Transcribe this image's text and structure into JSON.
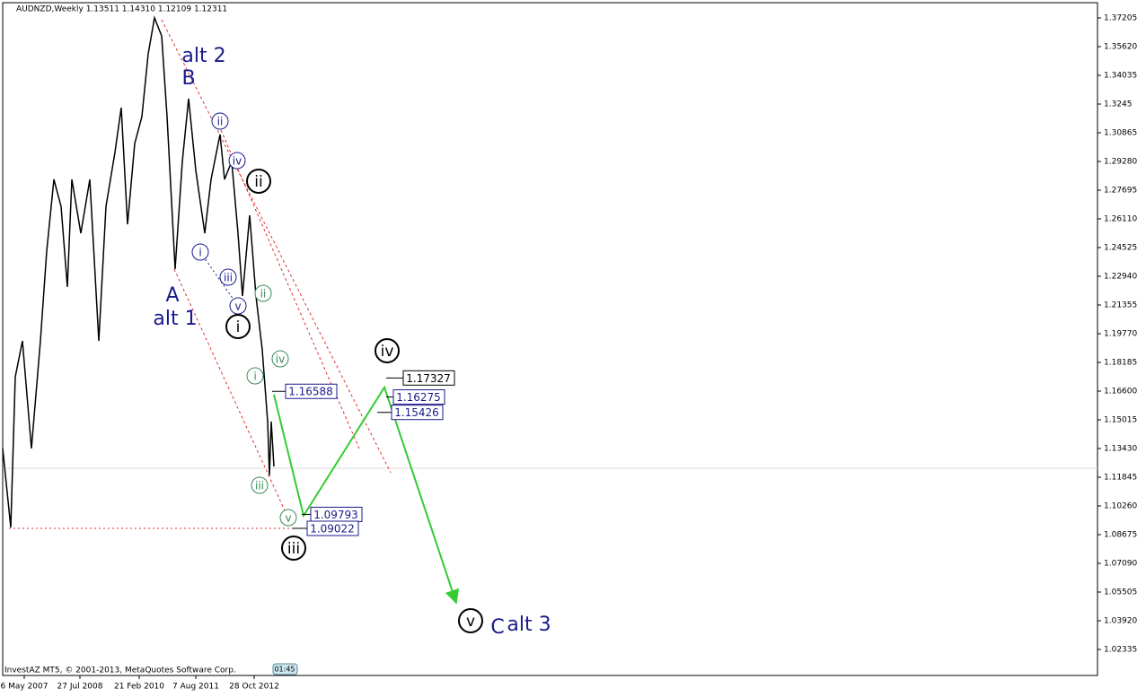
{
  "chart_data": {
    "type": "line",
    "title": "AUDNZD,Weekly  1.13511 1.14310 1.12109 1.12311",
    "footer": "InvestAZ MT5, © 2001-2013, MetaQuotes Software Corp.",
    "clock": "01:45",
    "xlim": [
      0,
      1219
    ],
    "ylim": [
      1.00899,
      1.38047
    ],
    "xticks": [
      {
        "value": 24,
        "label": "6 May 2007"
      },
      {
        "value": 86,
        "label": "27 Jul 2008"
      },
      {
        "value": 152,
        "label": "21 Feb 2010"
      },
      {
        "value": 215,
        "label": "7 Aug 2011"
      },
      {
        "value": 280,
        "label": "28 Oct 2012"
      }
    ],
    "yticks": [
      1.37205,
      {
        "value": 1.3562,
        "label": "1.35620"
      },
      1.34035,
      1.3245,
      1.30865,
      {
        "value": 1.2928,
        "label": "1.29280"
      },
      1.27695,
      {
        "value": 1.2611,
        "label": "1.26110"
      },
      1.24525,
      {
        "value": 1.2294,
        "label": "1.22940"
      },
      1.21355,
      {
        "value": 1.1977,
        "label": "1.19770"
      },
      1.18185,
      {
        "value": 1.166,
        "label": "1.16600"
      },
      1.15015,
      {
        "value": 1.1343,
        "label": "1.13430"
      },
      1.11845,
      {
        "value": 1.1026,
        "label": "1.10260"
      },
      1.08675,
      {
        "value": 1.0709,
        "label": "1.07090"
      },
      1.05505,
      {
        "value": 1.0392,
        "label": "1.03920"
      },
      1.02335
    ],
    "series": [
      {
        "name": "AUDNZD",
        "color": "#000000",
        "x": [
          0,
          9,
          14,
          22,
          32,
          42,
          49,
          57,
          65,
          72,
          77,
          87,
          97,
          107,
          115,
          125,
          132,
          139,
          147,
          155,
          162,
          169,
          177,
          183,
          192,
          200,
          207,
          215,
          225,
          232,
          242,
          247,
          255,
          262,
          267,
          275,
          282,
          289,
          295,
          297,
          299,
          302
        ],
        "values": [
          1.1343,
          1.0907,
          1.1739,
          1.1937,
          1.1343,
          1.1937,
          1.2433,
          1.2829,
          1.268,
          1.2235,
          1.2829,
          1.2532,
          1.2829,
          1.1937,
          1.268,
          1.2978,
          1.3225,
          1.2581,
          1.3027,
          1.3176,
          1.3522,
          1.3721,
          1.3621,
          1.3176,
          1.2334,
          1.2928,
          1.3275,
          1.2879,
          1.2532,
          1.2829,
          1.3077,
          1.2829,
          1.2928,
          1.2532,
          1.2185,
          1.2631,
          1.2185,
          1.1888,
          1.1492,
          1.1194,
          1.1492,
          1.1244
        ]
      },
      {
        "name": "Projection",
        "color": "#33cc33",
        "x": [
          302,
          335,
          425,
          505
        ],
        "values": [
          1.1641,
          1.0972,
          1.1681,
          1.0491
        ]
      }
    ],
    "price_levels": [
      1.16588,
      1.17327,
      1.16275,
      1.15426,
      1.09793,
      1.09022
    ],
    "annotations": [
      "alt 2",
      "B",
      "A",
      "alt 1",
      "ii",
      "iv",
      "i",
      "iii",
      "v",
      "ii",
      "iv",
      "i",
      "iii",
      "v",
      "ii",
      "i",
      "iii",
      "iv",
      "v",
      "C",
      "alt 3"
    ]
  }
}
